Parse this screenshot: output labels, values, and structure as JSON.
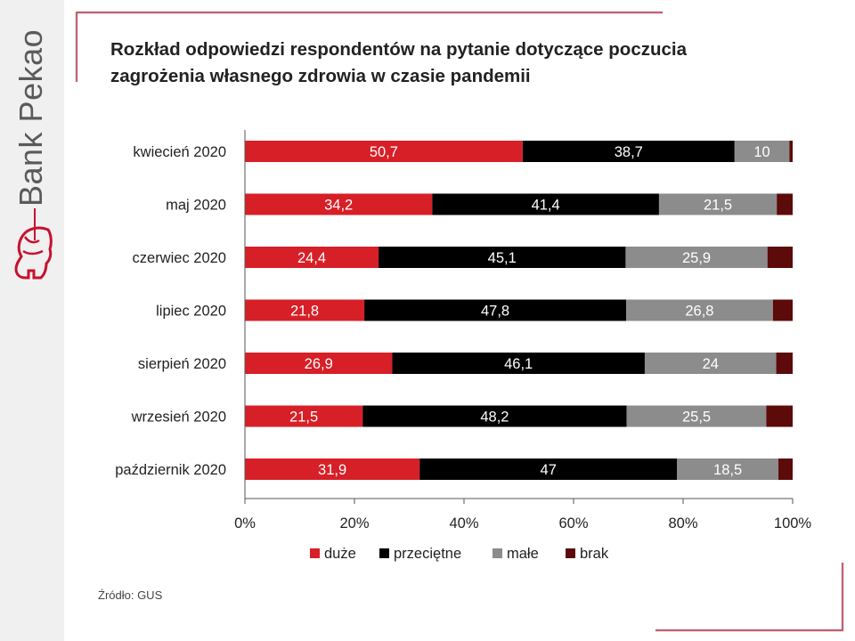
{
  "brand": {
    "name": "Bank Pekao",
    "accent": "#c8102e"
  },
  "source": "Źródło: GUS",
  "chart_data": {
    "type": "bar",
    "orientation": "horizontal",
    "stacked": true,
    "title_lines": [
      "Rozkład odpowiedzi respondentów na pytanie dotyczące poczucia",
      "zagrożenia własnego zdrowia w czasie pandemii"
    ],
    "categories": [
      "kwiecień 2020",
      "maj 2020",
      "czerwiec 2020",
      "lipiec 2020",
      "sierpień 2020",
      "wrzesień 2020",
      "październik 2020"
    ],
    "series": [
      {
        "name": "duże",
        "color": "#d71f27",
        "values": [
          50.7,
          34.2,
          24.4,
          21.8,
          26.9,
          21.5,
          31.9
        ],
        "labels": [
          "50,7",
          "34,2",
          "24,4",
          "21,8",
          "26,9",
          "21,5",
          "31,9"
        ],
        "label_color": "#ffffff"
      },
      {
        "name": "przeciętne",
        "color": "#000000",
        "values": [
          38.7,
          41.4,
          45.1,
          47.8,
          46.1,
          48.2,
          47
        ],
        "labels": [
          "38,7",
          "41,4",
          "45,1",
          "47,8",
          "46,1",
          "48,2",
          "47"
        ],
        "label_color": "#ffffff"
      },
      {
        "name": "małe",
        "color": "#8c8c8c",
        "values": [
          10,
          21.5,
          25.9,
          26.8,
          24,
          25.5,
          18.5
        ],
        "labels": [
          "10",
          "21,5",
          "25,9",
          "26,8",
          "24",
          "25,5",
          "18,5"
        ],
        "label_color": "#ffffff"
      },
      {
        "name": "brak",
        "color": "#5c0a0a",
        "values": [
          0.6,
          2.9,
          4.6,
          3.6,
          3,
          4.8,
          2.6
        ],
        "labels": [],
        "label_color": "#ffffff"
      }
    ],
    "xlim": [
      0,
      100
    ],
    "xticks": [
      "0%",
      "20%",
      "40%",
      "60%",
      "80%",
      "100%"
    ],
    "xlabel": "",
    "ylabel": "",
    "grid": false,
    "legend": "bottom"
  }
}
